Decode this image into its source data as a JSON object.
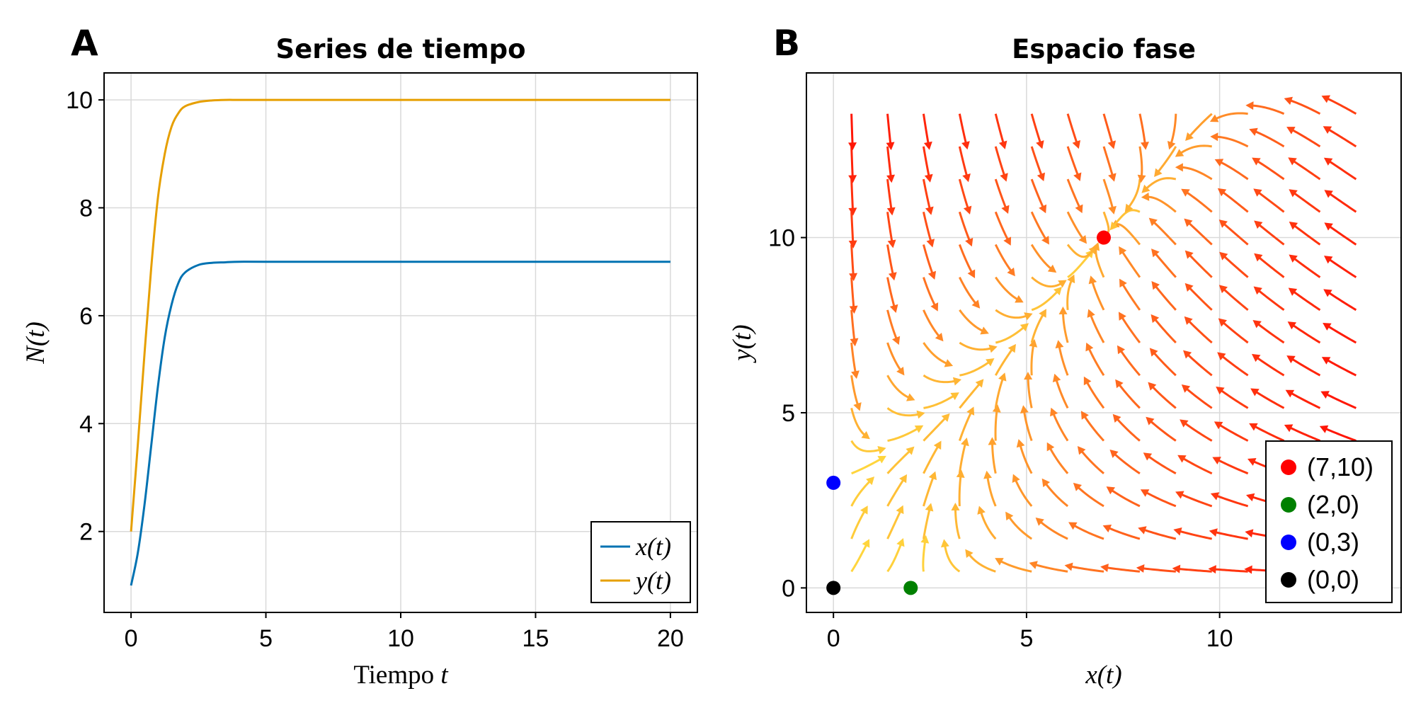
{
  "chart_data": [
    {
      "type": "line",
      "panel_label": "A",
      "title": "Series de tiempo",
      "xlabel": "Tiempo t",
      "ylabel": "N(t)",
      "xlim": [
        -1,
        21
      ],
      "ylim": [
        0.5,
        10.5
      ],
      "xticks": [
        0,
        5,
        10,
        15,
        20
      ],
      "yticks": [
        2,
        4,
        6,
        8,
        10
      ],
      "grid": true,
      "legend_position": "bottom-right",
      "series": [
        {
          "name": "x(t)",
          "color": "#0072b2",
          "x": [
            0,
            0.25,
            0.5,
            0.75,
            1.0,
            1.25,
            1.5,
            1.75,
            2.0,
            2.5,
            3.0,
            3.5,
            4.0,
            5,
            10,
            15,
            20
          ],
          "y": [
            1.0,
            1.6,
            2.5,
            3.6,
            4.7,
            5.6,
            6.2,
            6.6,
            6.8,
            6.94,
            6.98,
            6.99,
            7.0,
            7.0,
            7.0,
            7.0,
            7.0
          ]
        },
        {
          "name": "y(t)",
          "color": "#e69f00",
          "x": [
            0,
            0.25,
            0.5,
            0.75,
            1.0,
            1.25,
            1.5,
            1.75,
            2.0,
            2.5,
            3.0,
            3.5,
            4.0,
            5,
            10,
            15,
            20
          ],
          "y": [
            2.0,
            3.6,
            5.3,
            6.9,
            8.2,
            9.0,
            9.5,
            9.75,
            9.88,
            9.96,
            9.99,
            10.0,
            10.0,
            10.0,
            10.0,
            10.0,
            10.0
          ]
        }
      ]
    },
    {
      "type": "streamplot",
      "panel_label": "B",
      "title": "Espacio fase",
      "xlabel": "x(t)",
      "ylabel": "y(t)",
      "xlim": [
        -0.7,
        14.7
      ],
      "ylim": [
        -0.7,
        14.7
      ],
      "xticks": [
        0,
        5,
        10
      ],
      "yticks": [
        0,
        5,
        10
      ],
      "grid": true,
      "legend_position": "bottom-right",
      "field": {
        "x_range": [
          0,
          14
        ],
        "y_range": [
          0,
          14
        ],
        "colormap": [
          "#ffe040",
          "#ff0000"
        ]
      },
      "points": [
        {
          "label": "(7,10)",
          "x": 7,
          "y": 10,
          "color": "#ff0000"
        },
        {
          "label": "(2,0)",
          "x": 2,
          "y": 0,
          "color": "#008000"
        },
        {
          "label": "(0,3)",
          "x": 0,
          "y": 3,
          "color": "#0000ff"
        },
        {
          "label": "(0,0)",
          "x": 0,
          "y": 0,
          "color": "#000000"
        }
      ]
    }
  ]
}
